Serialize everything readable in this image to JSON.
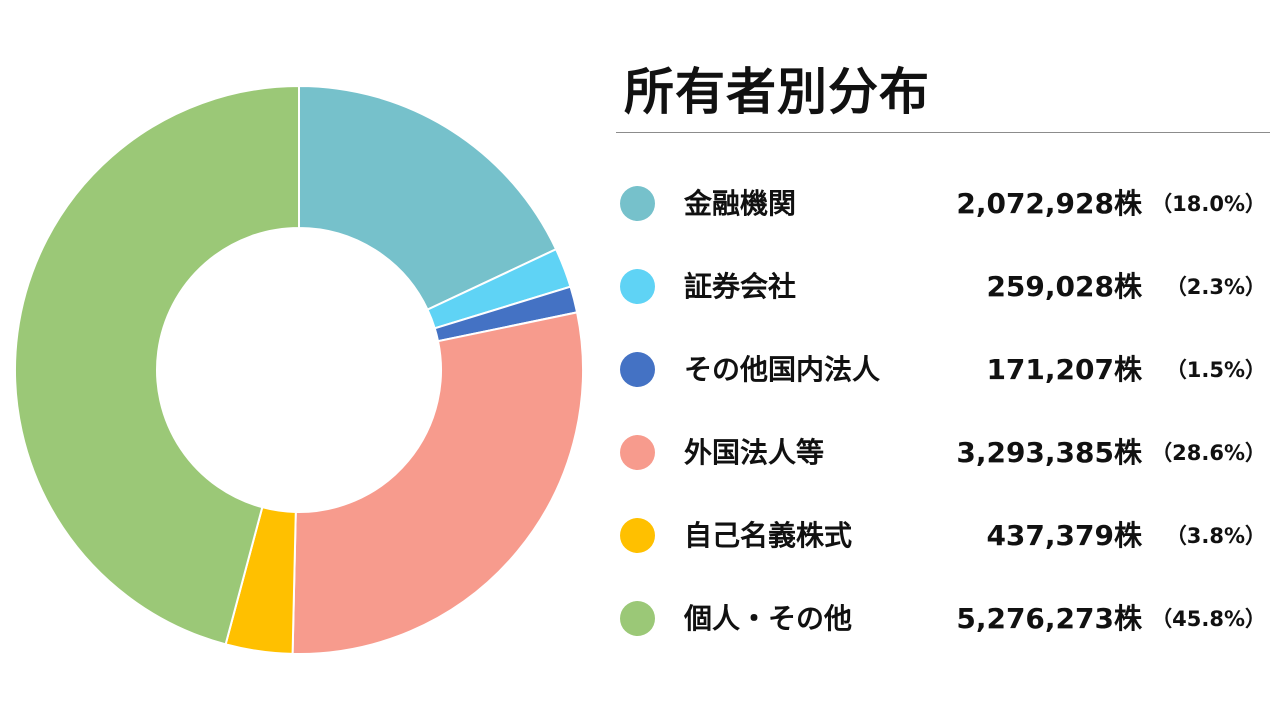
{
  "chart_data": {
    "type": "pie",
    "title": "所有者別分布",
    "unit": "株",
    "categories": [
      "金融機関",
      "証券会社",
      "その他国内法人",
      "外国法人等",
      "自己名義株式",
      "個人・その他"
    ],
    "values": [
      2072928,
      259028,
      171207,
      3293385,
      437379,
      5276273
    ],
    "value_labels": [
      "2,072,928株",
      "259,028株",
      "171,207株",
      "3,293,385株",
      "437,379株",
      "5,276,273株"
    ],
    "percent_labels": [
      "（18.0%）",
      "（2.3%）",
      "（1.5%）",
      "（28.6%）",
      "（3.8%）",
      "（45.8%）"
    ],
    "colors": [
      "#76C1CB",
      "#5FD3F5",
      "#4472C4",
      "#F79B8D",
      "#FFC000",
      "#9BC877"
    ],
    "legend_position": "right",
    "style": "donut"
  }
}
